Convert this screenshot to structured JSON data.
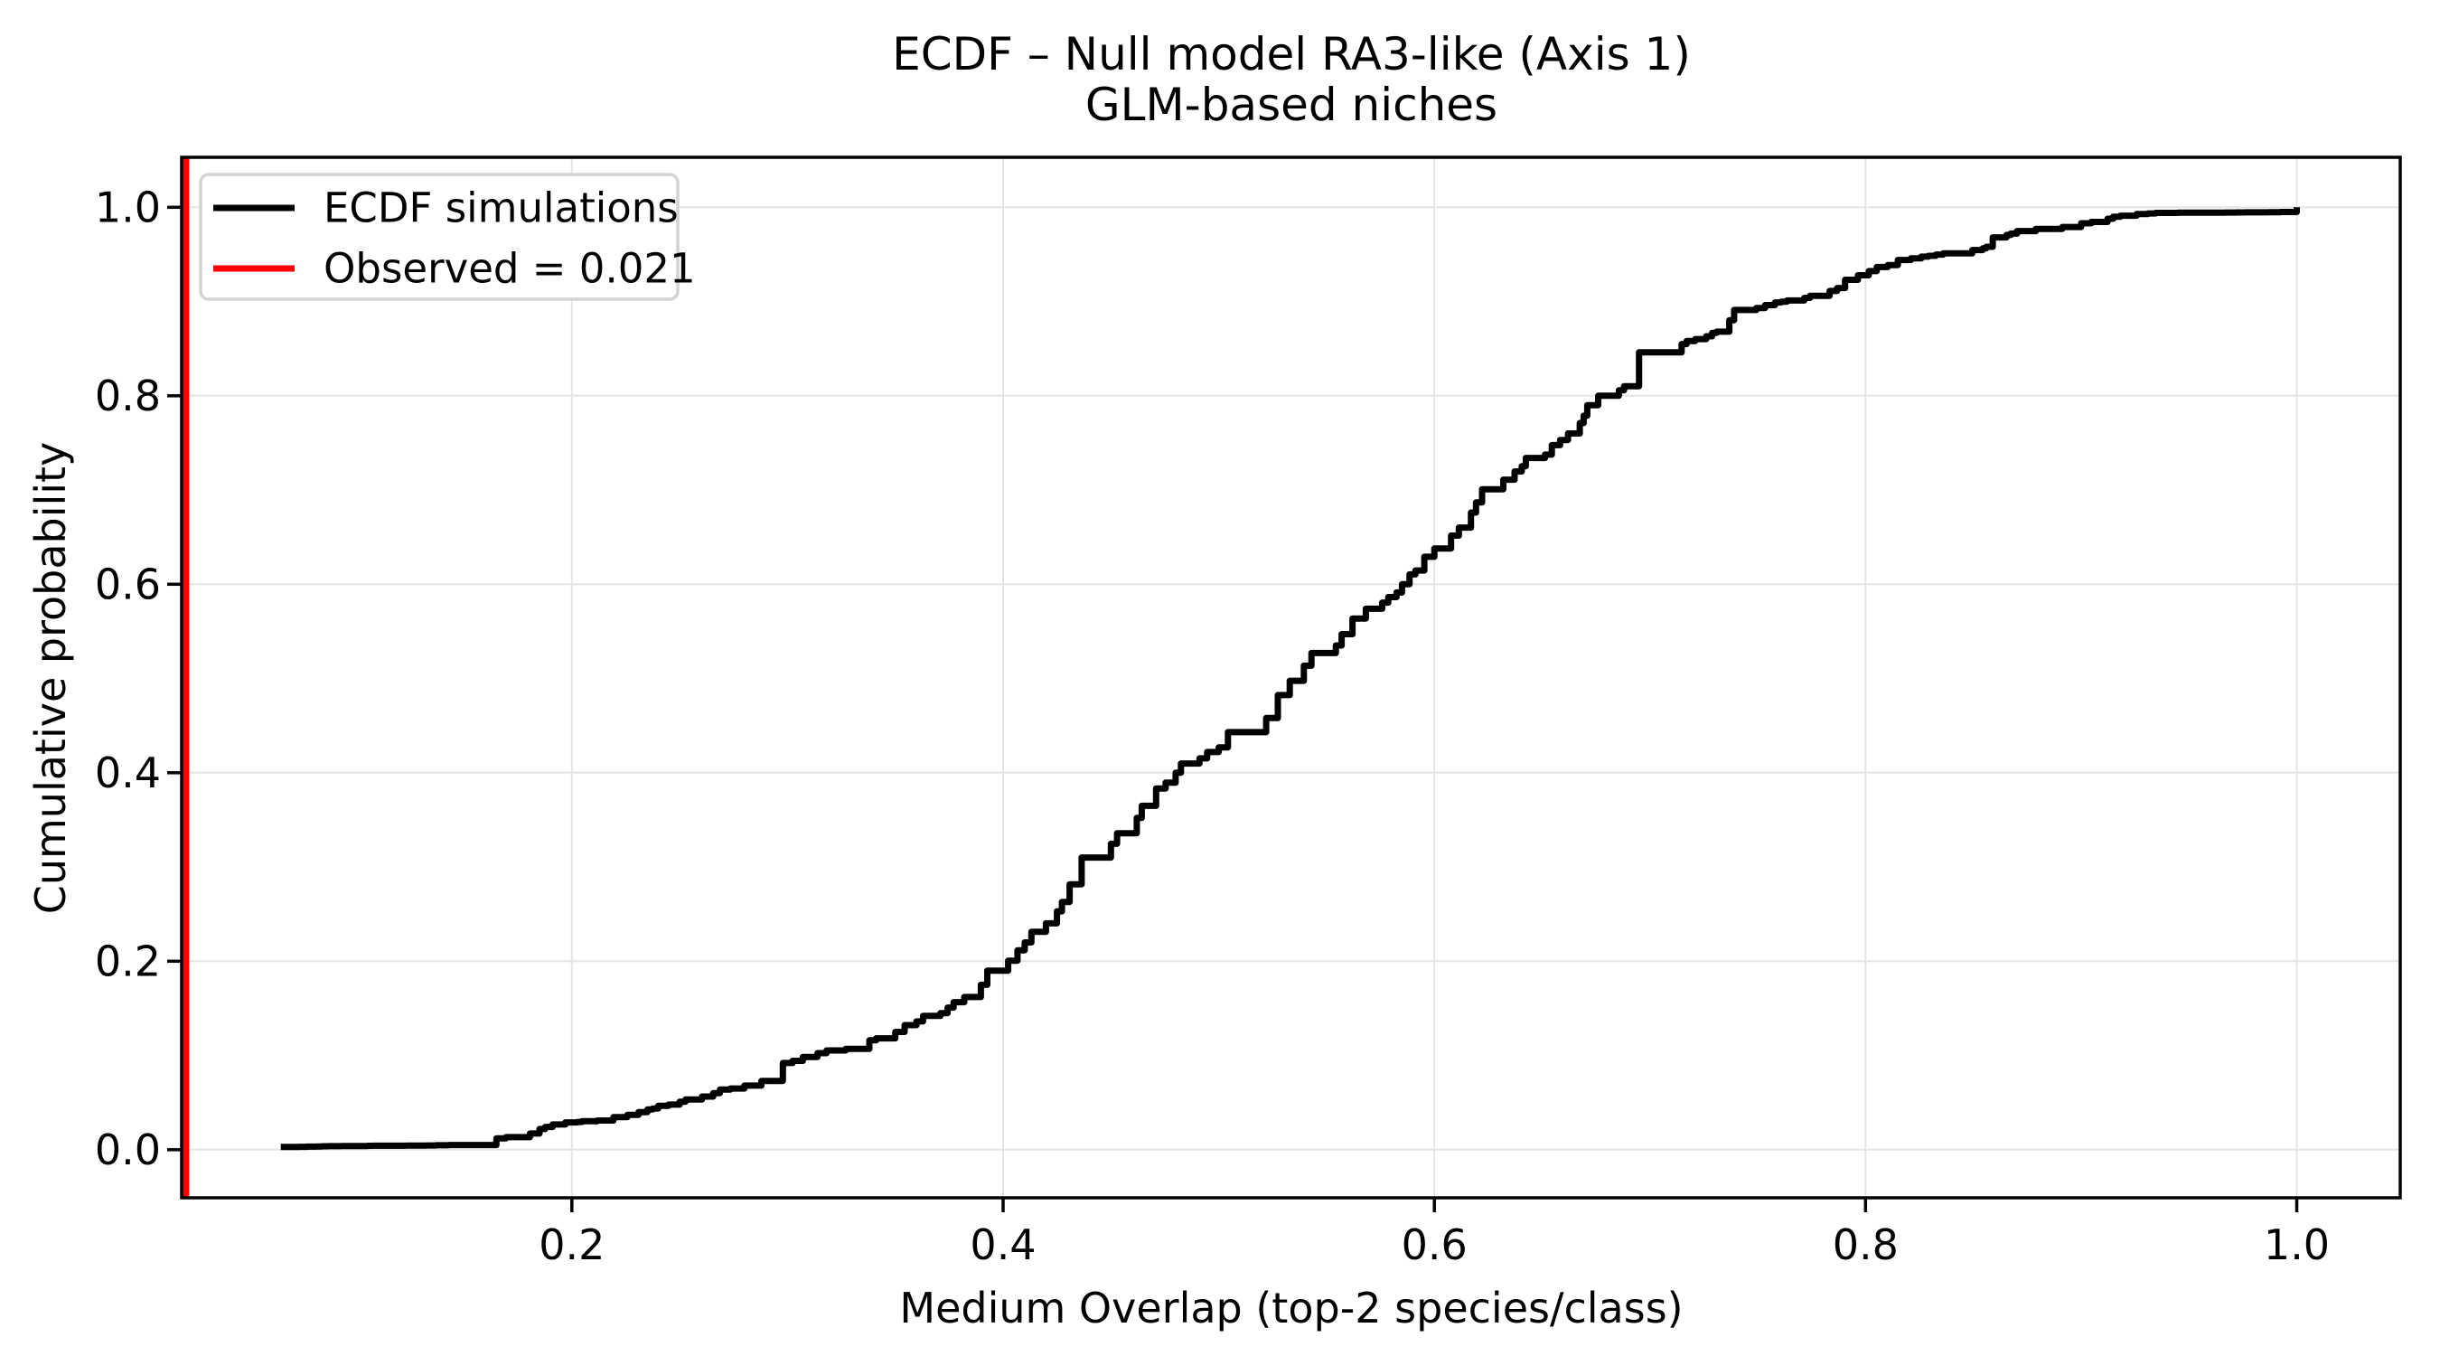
{
  "chart_data": {
    "type": "line",
    "subtype": "ecdf_step",
    "title": "ECDF – Null model RA3-like (Axis 1)",
    "subtitle": "GLM-based niches",
    "xlabel": "Medium Overlap (top-2 species/class)",
    "ylabel": "Cumulative probability",
    "x_ticks": [
      0.2,
      0.4,
      0.6,
      0.8,
      1.0
    ],
    "y_ticks": [
      0.0,
      0.2,
      0.4,
      0.6,
      0.8,
      1.0
    ],
    "x_tick_labels": [
      "0.2",
      "0.4",
      "0.6",
      "0.8",
      "1.0"
    ],
    "y_tick_labels": [
      "0.0",
      "0.2",
      "0.4",
      "0.6",
      "0.8",
      "1.0"
    ],
    "xlim": [
      0.019,
      1.048
    ],
    "ylim": [
      -0.051,
      1.053
    ],
    "grid": true,
    "legend_position": "upper left",
    "legend": {
      "entries": [
        {
          "label": "ECDF simulations",
          "color": "#000000"
        },
        {
          "label": "Observed = 0.021",
          "color": "#ff0000"
        }
      ]
    },
    "observed_value": 0.021,
    "observed_color": "#ff0000",
    "series": [
      {
        "name": "ECDF simulations",
        "color": "#000000",
        "points": [
          [
            0.065,
            0.003
          ],
          [
            0.1,
            0.004
          ],
          [
            0.148,
            0.005
          ],
          [
            0.165,
            0.012
          ],
          [
            0.185,
            0.022
          ],
          [
            0.197,
            0.029
          ],
          [
            0.215,
            0.031
          ],
          [
            0.25,
            0.051
          ],
          [
            0.28,
            0.068
          ],
          [
            0.3,
            0.092
          ],
          [
            0.327,
            0.107
          ],
          [
            0.35,
            0.125
          ],
          [
            0.368,
            0.142
          ],
          [
            0.382,
            0.162
          ],
          [
            0.397,
            0.19
          ],
          [
            0.41,
            0.22
          ],
          [
            0.425,
            0.253
          ],
          [
            0.444,
            0.31
          ],
          [
            0.462,
            0.352
          ],
          [
            0.48,
            0.4
          ],
          [
            0.5,
            0.427
          ],
          [
            0.522,
            0.458
          ],
          [
            0.543,
            0.527
          ],
          [
            0.557,
            0.547
          ],
          [
            0.571,
            0.574
          ],
          [
            0.585,
            0.6
          ],
          [
            0.6,
            0.638
          ],
          [
            0.617,
            0.676
          ],
          [
            0.632,
            0.711
          ],
          [
            0.648,
            0.734
          ],
          [
            0.662,
            0.76
          ],
          [
            0.676,
            0.8
          ],
          [
            0.688,
            0.81
          ],
          [
            0.703,
            0.846
          ],
          [
            0.717,
            0.858
          ],
          [
            0.731,
            0.868
          ],
          [
            0.745,
            0.891
          ],
          [
            0.758,
            0.899
          ],
          [
            0.78,
            0.906
          ],
          [
            0.794,
            0.923
          ],
          [
            0.815,
            0.944
          ],
          [
            0.836,
            0.951
          ],
          [
            0.856,
            0.958
          ],
          [
            0.859,
            0.968
          ],
          [
            0.879,
            0.977
          ],
          [
            0.9,
            0.983
          ],
          [
            0.923,
            0.991
          ],
          [
            0.94,
            0.994
          ],
          [
            0.996,
            0.995
          ],
          [
            1.0,
            1.0
          ]
        ]
      }
    ]
  },
  "colors": {
    "background": "#ffffff",
    "grid": "#e5e5e5",
    "spine": "#000000",
    "curve": "#000000",
    "observed_line": "#ff0000",
    "legend_border": "#d4d4d4",
    "legend_fill": "#ffffff"
  }
}
